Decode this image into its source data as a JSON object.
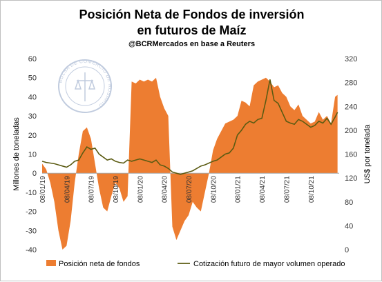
{
  "chart_data": {
    "type": "area+line",
    "title": "Posición Neta de Fondos de inversión",
    "subtitle": "en futuros de Maíz",
    "source": "@BCRMercados  en base a Reuters",
    "watermark_text": "BOLSA DE COMERCIO DE ROSARIO",
    "ylabel_left": "Millones de toneladas",
    "ylabel_right": "US$ por tonelada",
    "ylim_left": [
      -40,
      60
    ],
    "ylim_right": [
      0,
      320
    ],
    "yticks_left": [
      -40,
      -30,
      -20,
      -10,
      0,
      10,
      20,
      30,
      40,
      50,
      60
    ],
    "yticks_right": [
      0,
      40,
      80,
      120,
      160,
      200,
      240,
      280,
      320
    ],
    "x_range": [
      0,
      36.5
    ],
    "x_ticks": [
      {
        "label": "08/01/19",
        "x": 0
      },
      {
        "label": "08/04/19",
        "x": 3
      },
      {
        "label": "08/07/19",
        "x": 6
      },
      {
        "label": "08/10/19",
        "x": 9
      },
      {
        "label": "08/01/20",
        "x": 12
      },
      {
        "label": "08/04/20",
        "x": 15
      },
      {
        "label": "08/07/20",
        "x": 18
      },
      {
        "label": "08/10/20",
        "x": 21
      },
      {
        "label": "08/01/21",
        "x": 24
      },
      {
        "label": "08/04/21",
        "x": 27
      },
      {
        "label": "08/07/21",
        "x": 30
      },
      {
        "label": "08/10/21",
        "x": 33
      }
    ],
    "series": [
      {
        "name": "Posición neta de fondos",
        "type": "area",
        "axis": "left",
        "color": "#ED7D31",
        "x": [
          0,
          0.5,
          1.0,
          1.5,
          2.0,
          2.5,
          3.0,
          3.5,
          4.0,
          4.5,
          5.0,
          5.5,
          6.0,
          6.5,
          7.0,
          7.5,
          8.0,
          8.5,
          9.0,
          9.5,
          10.0,
          10.5,
          11.0,
          11.5,
          12.0,
          12.5,
          13.0,
          13.5,
          14.0,
          14.5,
          15.0,
          15.5,
          16.0,
          16.5,
          17.0,
          17.5,
          18.0,
          18.5,
          19.0,
          19.5,
          20.0,
          20.5,
          21.0,
          21.5,
          22.0,
          22.5,
          23.0,
          23.5,
          24.0,
          24.5,
          25.0,
          25.5,
          26.0,
          26.5,
          27.0,
          27.5,
          28.0,
          28.5,
          29.0,
          29.5,
          30.0,
          30.5,
          31.0,
          31.5,
          32.0,
          32.5,
          33.0,
          33.5,
          34.0,
          34.5,
          35.0,
          35.5,
          36.0,
          36.3
        ],
        "values": [
          5,
          2,
          -5,
          -15,
          -30,
          -40,
          -38,
          -25,
          -5,
          10,
          22,
          24,
          18,
          5,
          -8,
          -18,
          -20,
          -12,
          -5,
          -8,
          -15,
          -12,
          48,
          47,
          49,
          48,
          49,
          48,
          50,
          40,
          34,
          30,
          -28,
          -35,
          -30,
          -25,
          -22,
          -15,
          -18,
          -20,
          -10,
          0,
          12,
          18,
          22,
          26,
          27,
          28,
          30,
          38,
          37,
          35,
          46,
          48,
          49,
          50,
          48,
          45,
          46,
          42,
          40,
          35,
          33,
          36,
          30,
          28,
          26,
          27,
          32,
          28,
          30,
          26,
          40,
          41
        ]
      },
      {
        "name": "Cotización futuro de mayor volumen operado",
        "type": "line",
        "axis": "right",
        "color": "#5B5B12",
        "x": [
          0,
          0.5,
          1.0,
          1.5,
          2.0,
          2.5,
          3.0,
          3.5,
          4.0,
          4.5,
          5.0,
          5.5,
          6.0,
          6.5,
          7.0,
          7.5,
          8.0,
          8.5,
          9.0,
          9.5,
          10.0,
          10.5,
          11.0,
          11.5,
          12.0,
          12.5,
          13.0,
          13.5,
          14.0,
          14.5,
          15.0,
          15.5,
          16.0,
          16.5,
          17.0,
          17.5,
          18.0,
          18.5,
          19.0,
          19.5,
          20.0,
          20.5,
          21.0,
          21.5,
          22.0,
          22.5,
          23.0,
          23.5,
          24.0,
          24.5,
          25.0,
          25.5,
          26.0,
          26.5,
          27.0,
          27.5,
          28.0,
          28.5,
          29.0,
          29.5,
          30.0,
          30.5,
          31.0,
          31.5,
          32.0,
          32.5,
          33.0,
          33.5,
          34.0,
          34.5,
          35.0,
          35.5,
          36.0,
          36.3
        ],
        "values": [
          148,
          146,
          145,
          144,
          142,
          140,
          138,
          142,
          148,
          150,
          162,
          172,
          168,
          170,
          160,
          155,
          150,
          152,
          148,
          146,
          145,
          150,
          148,
          150,
          152,
          150,
          148,
          146,
          150,
          142,
          140,
          136,
          130,
          128,
          126,
          128,
          130,
          132,
          136,
          140,
          142,
          145,
          148,
          150,
          155,
          160,
          162,
          170,
          192,
          200,
          210,
          215,
          212,
          218,
          220,
          250,
          285,
          250,
          245,
          230,
          215,
          212,
          210,
          218,
          215,
          210,
          205,
          208,
          215,
          212,
          220,
          210,
          222,
          230
        ]
      }
    ],
    "legend": {
      "placement": "bottom"
    },
    "grid": false
  }
}
